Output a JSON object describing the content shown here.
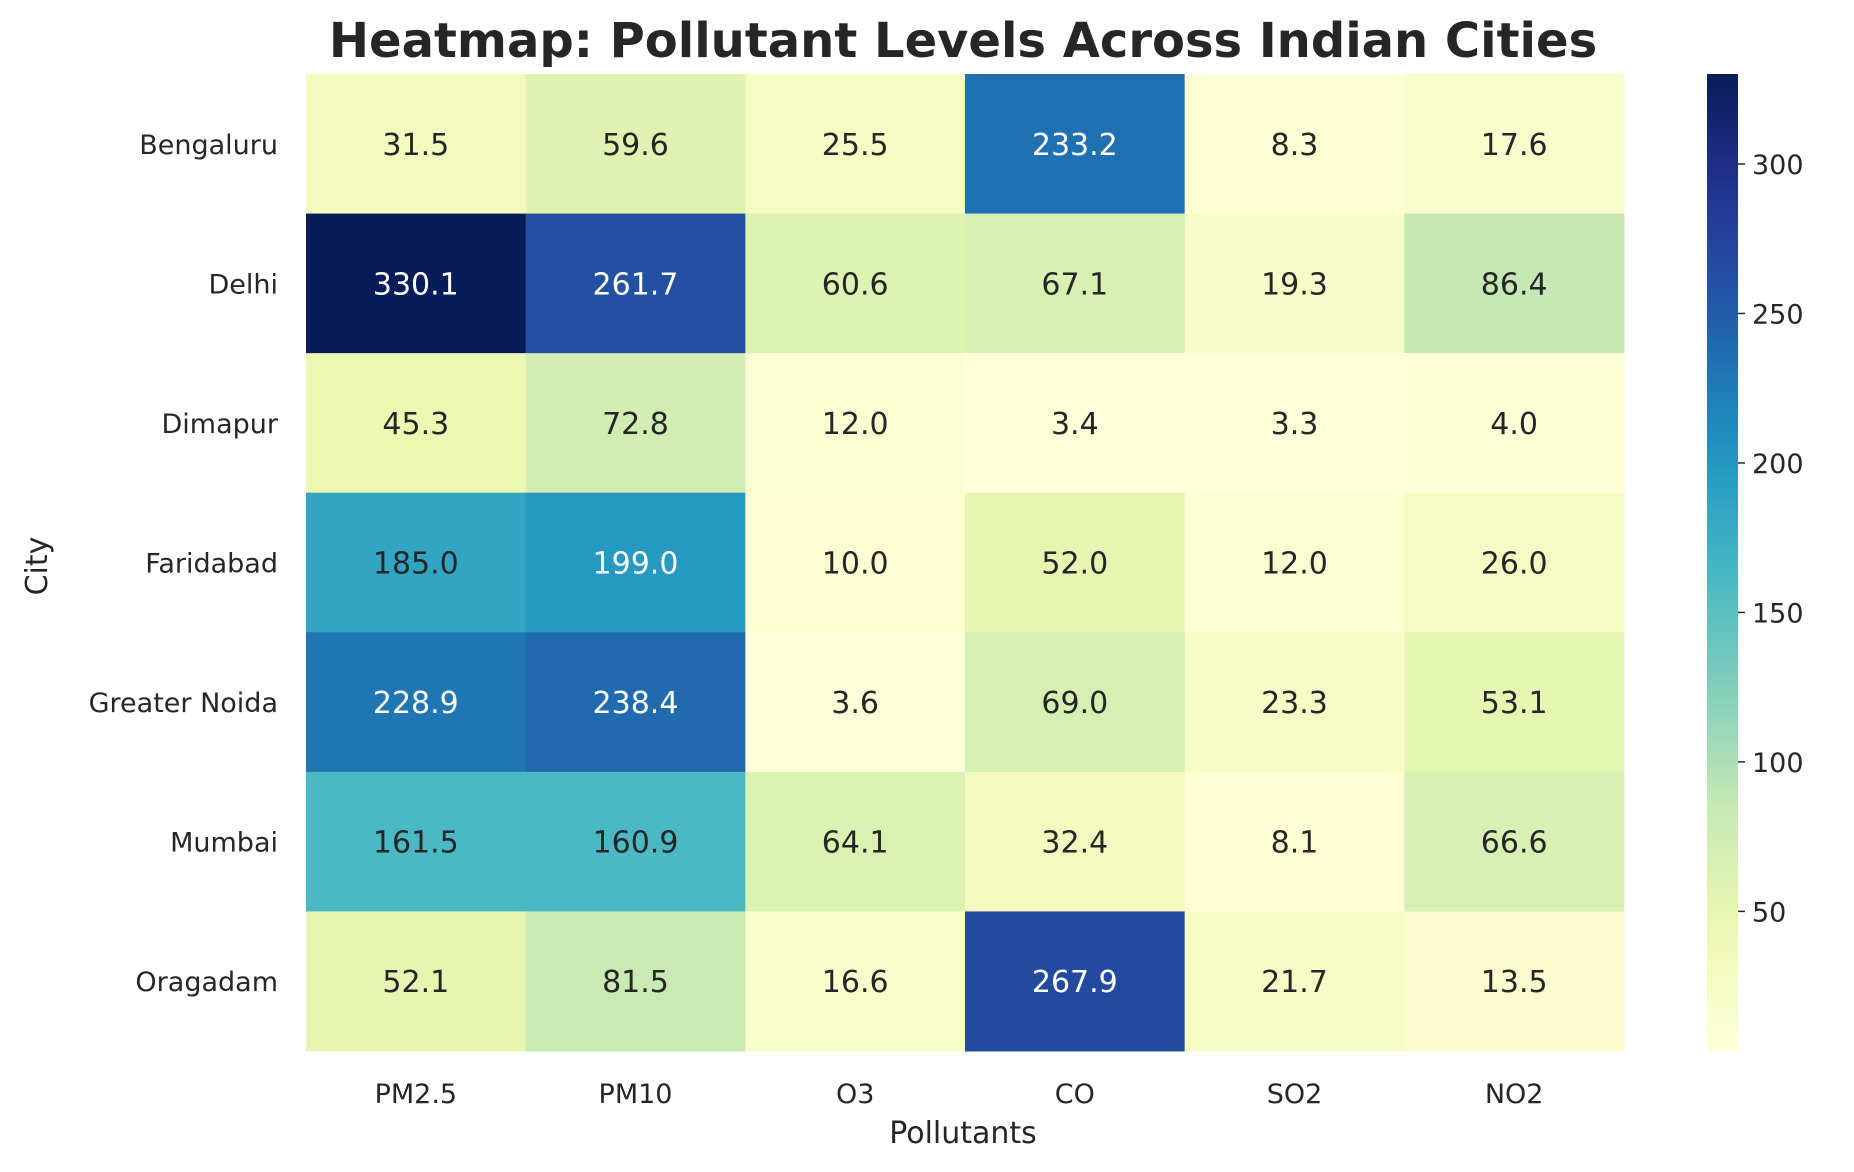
{
  "chart_data": {
    "type": "heatmap",
    "title": "Heatmap: Pollutant Levels Across Indian Cities",
    "xlabel": "Pollutants",
    "ylabel": "City",
    "x_categories": [
      "PM2.5",
      "PM10",
      "O3",
      "CO",
      "SO2",
      "NO2"
    ],
    "y_categories": [
      "Bengaluru",
      "Delhi",
      "Dimapur",
      "Faridabad",
      "Greater Noida",
      "Mumbai",
      "Oragadam"
    ],
    "values": [
      [
        31.5,
        59.6,
        25.5,
        233.2,
        8.3,
        17.6
      ],
      [
        330.1,
        261.7,
        60.6,
        67.1,
        19.3,
        86.4
      ],
      [
        45.3,
        72.8,
        12.0,
        3.4,
        3.3,
        4.0
      ],
      [
        185.0,
        199.0,
        10.0,
        52.0,
        12.0,
        26.0
      ],
      [
        228.9,
        238.4,
        3.6,
        69.0,
        23.3,
        53.1
      ],
      [
        161.5,
        160.9,
        64.1,
        32.4,
        8.1,
        66.6
      ],
      [
        52.1,
        81.5,
        16.6,
        267.9,
        21.7,
        13.5
      ]
    ],
    "value_format": "0.1f",
    "colormap": "YlGnBu",
    "color_range": [
      3.3,
      330.1
    ],
    "colorbar_ticks": [
      50,
      100,
      150,
      200,
      250,
      300
    ],
    "grid": false
  }
}
